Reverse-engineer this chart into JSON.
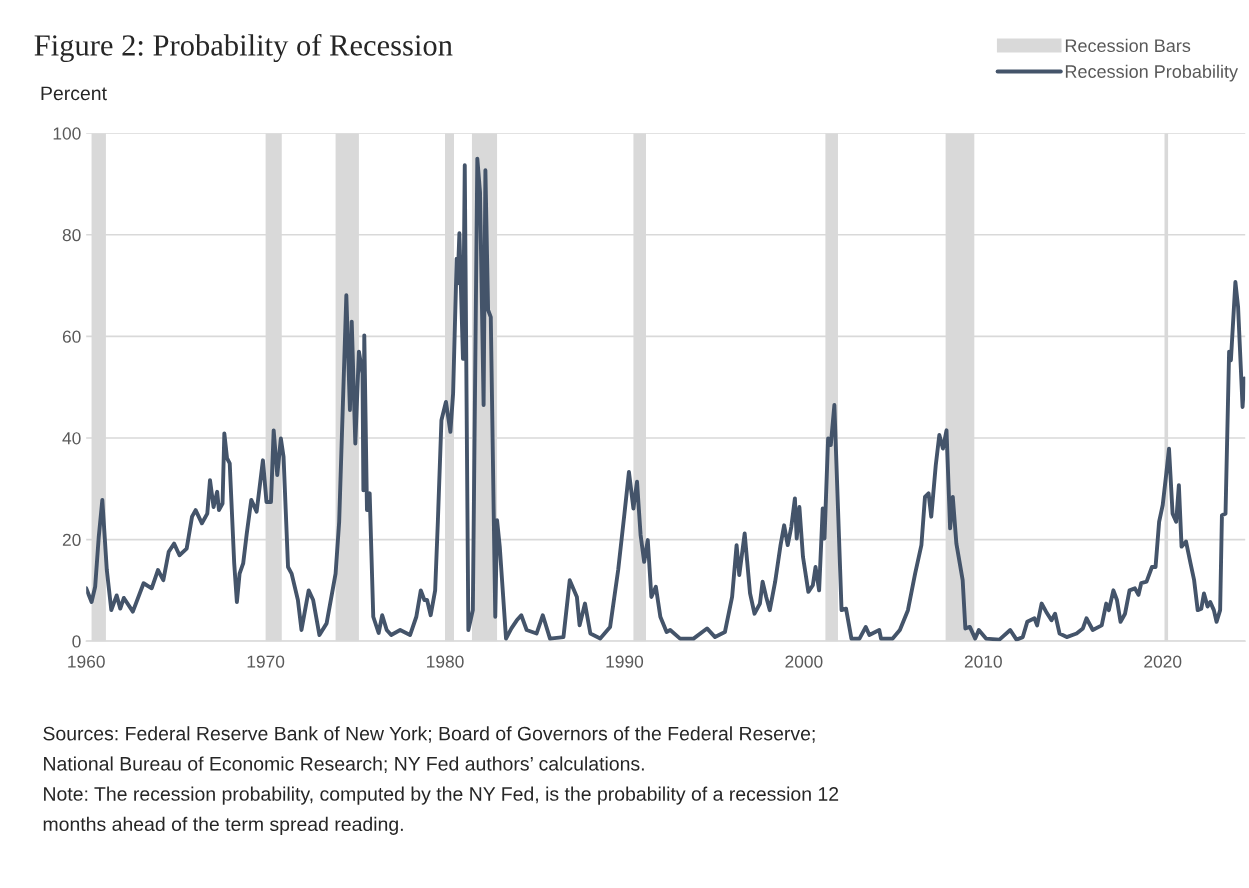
{
  "chart_data": {
    "type": "line",
    "title": "Figure 2: Probability of Recession",
    "ylabel": "Percent",
    "xlim": [
      1960,
      2024.6
    ],
    "xticks": [
      1960,
      1970,
      1980,
      1990,
      2000,
      2010,
      2020
    ],
    "ylim": [
      0,
      100
    ],
    "yticks": [
      0,
      20,
      40,
      60,
      80,
      100
    ],
    "grid": "y",
    "legend": "top right",
    "series": [
      {
        "name": "Recession Probability",
        "color": "#44546a",
        "x": [
          1960.0,
          1960.3,
          1960.5,
          1960.7,
          1960.9,
          1961.15,
          1961.4,
          1961.7,
          1961.9,
          1962.1,
          1962.6,
          1963.2,
          1963.65,
          1964.0,
          1964.3,
          1964.6,
          1964.9,
          1965.2,
          1965.6,
          1965.9,
          1966.1,
          1966.45,
          1966.75,
          1966.9,
          1967.1,
          1967.3,
          1967.4,
          1967.6,
          1967.7,
          1967.85,
          1968.0,
          1968.25,
          1968.4,
          1968.55,
          1968.75,
          1968.95,
          1969.2,
          1969.5,
          1969.85,
          1970.05,
          1970.3,
          1970.45,
          1970.65,
          1970.85,
          1971.0,
          1971.25,
          1971.45,
          1971.8,
          1972.0,
          1972.4,
          1972.65,
          1973.0,
          1973.4,
          1973.9,
          1974.1,
          1974.5,
          1974.7,
          1974.8,
          1975.0,
          1975.2,
          1975.4,
          1975.45,
          1975.5,
          1975.65,
          1975.8,
          1976.0,
          1976.3,
          1976.5,
          1976.75,
          1977.0,
          1977.5,
          1978.05,
          1978.4,
          1978.65,
          1978.85,
          1979.0,
          1979.2,
          1979.45,
          1979.6,
          1979.8,
          1980.05,
          1980.3,
          1980.45,
          1980.65,
          1980.7,
          1980.8,
          1981.0,
          1981.1,
          1981.3,
          1981.55,
          1981.8,
          1981.95,
          1982.15,
          1982.25,
          1982.4,
          1982.55,
          1982.8,
          1982.9,
          1983.05,
          1983.4,
          1983.7,
          1984.0,
          1984.25,
          1984.55,
          1985.1,
          1985.45,
          1985.85,
          1986.6,
          1986.95,
          1987.35,
          1987.5,
          1987.8,
          1988.1,
          1988.65,
          1989.2,
          1989.65,
          1990.0,
          1990.25,
          1990.5,
          1990.7,
          1990.9,
          1991.1,
          1991.3,
          1991.5,
          1991.75,
          1992.0,
          1992.35,
          1992.55,
          1993.1,
          1993.85,
          1994.6,
          1995.05,
          1995.6,
          1996.0,
          1996.25,
          1996.4,
          1996.7,
          1997.0,
          1997.25,
          1997.55,
          1997.7,
          1997.9,
          1998.1,
          1998.4,
          1998.7,
          1998.9,
          1999.1,
          1999.3,
          1999.5,
          1999.6,
          1999.75,
          1999.95,
          2000.25,
          2000.5,
          2000.65,
          2000.85,
          2001.05,
          2001.15,
          2001.35,
          2001.5,
          2001.7,
          2002.1,
          2002.35,
          2002.65,
          2003.1,
          2003.45,
          2003.65,
          2004.2,
          2004.3,
          2004.95,
          2005.35,
          2005.8,
          2006.2,
          2006.55,
          2006.75,
          2006.95,
          2007.1,
          2007.35,
          2007.55,
          2007.75,
          2007.95,
          2008.15,
          2008.3,
          2008.5,
          2008.85,
          2009.0,
          2009.25,
          2009.55,
          2009.75,
          2010.15,
          2010.9,
          2011.5,
          2011.85,
          2012.2,
          2012.45,
          2012.85,
          2013.0,
          2013.25,
          2013.5,
          2013.8,
          2014.0,
          2014.25,
          2014.65,
          2015.2,
          2015.55,
          2015.75,
          2016.1,
          2016.6,
          2016.85,
          2017.0,
          2017.25,
          2017.45,
          2017.65,
          2017.9,
          2018.15,
          2018.45,
          2018.65,
          2018.8,
          2019.1,
          2019.4,
          2019.6,
          2019.8,
          2020.0,
          2020.2,
          2020.35,
          2020.55,
          2020.75,
          2020.9,
          2021.05,
          2021.3,
          2021.55,
          2021.75,
          2021.95,
          2022.15,
          2022.3,
          2022.5,
          2022.65,
          2022.85,
          2023.0,
          2023.2,
          2023.3,
          2023.5,
          2023.7,
          2023.8,
          2024.05,
          2024.2,
          2024.45,
          2024.55
        ],
        "values": [
          10.4,
          7.7,
          10.7,
          20.5,
          27.8,
          14,
          6.1,
          9,
          6.4,
          8.5,
          5.8,
          11.4,
          10.4,
          14,
          12,
          17.6,
          19.2,
          16.9,
          18.2,
          24.5,
          25.8,
          23.2,
          25.1,
          31.7,
          26.4,
          29.4,
          25.8,
          27.1,
          40.9,
          36,
          35,
          15.3,
          7.7,
          13.3,
          15.3,
          21.2,
          27.8,
          25.5,
          35.6,
          27.4,
          27.4,
          41.5,
          32.7,
          39.9,
          36.3,
          14.6,
          13.3,
          8.1,
          2.2,
          10,
          8.1,
          1.2,
          3.5,
          13.3,
          23.5,
          68.1,
          45.5,
          62.9,
          38.9,
          57,
          52.7,
          29.7,
          60.2,
          25.8,
          29.1,
          4.8,
          1.6,
          5.1,
          2.2,
          1.2,
          2.2,
          1.2,
          4.8,
          10,
          8.1,
          8.1,
          5.1,
          10,
          23.5,
          43.5,
          47.1,
          41.2,
          48.8,
          75.3,
          70.4,
          80.3,
          55.6,
          93.7,
          2.2,
          6.1,
          95,
          88.4,
          46.5,
          92.7,
          65.2,
          63.8,
          4.8,
          23.8,
          18.6,
          0.5,
          2.5,
          4.1,
          5.1,
          2.2,
          1.5,
          5.1,
          0.5,
          0.8,
          12,
          8.7,
          3.1,
          7.4,
          1.5,
          0.5,
          2.8,
          14,
          25.1,
          33.3,
          26.1,
          31.4,
          20.9,
          15.6,
          19.9,
          8.7,
          10.7,
          4.8,
          1.8,
          2.2,
          0.5,
          0.5,
          2.5,
          0.8,
          1.8,
          8.7,
          18.9,
          13,
          21.2,
          9.4,
          5.4,
          7.4,
          11.7,
          8.7,
          6.1,
          11.7,
          18.9,
          22.8,
          18.9,
          22.5,
          28.1,
          20.2,
          26.4,
          16.6,
          9.7,
          11,
          14.6,
          10,
          26.1,
          20.2,
          39.9,
          38.6,
          46.5,
          6.1,
          6.4,
          0.5,
          0.5,
          2.8,
          1.2,
          2.2,
          0.5,
          0.5,
          2.2,
          6.1,
          13.3,
          18.9,
          28.4,
          29.1,
          24.5,
          34.6,
          40.6,
          37.9,
          41.5,
          22.2,
          28.4,
          19.2,
          12,
          2.5,
          2.8,
          0.5,
          2.2,
          0.5,
          0.3,
          2.2,
          0.3,
          0.8,
          3.8,
          4.5,
          3.1,
          7.4,
          5.8,
          4.1,
          5.4,
          1.5,
          0.8,
          1.5,
          2.5,
          4.5,
          2.2,
          3.1,
          7.4,
          6.1,
          10,
          8.1,
          3.8,
          5.4,
          10,
          10.4,
          9.1,
          11.4,
          11.7,
          14.6,
          14.6,
          23.5,
          26.8,
          33,
          37.9,
          25.1,
          23.5,
          30.7,
          18.6,
          19.6,
          15.3,
          12,
          6.1,
          6.4,
          9.4,
          6.8,
          7.7,
          6.1,
          3.8,
          6.1,
          24.8,
          25.1,
          57,
          55.3,
          70.7,
          65.8,
          46.1,
          51.7
        ]
      }
    ],
    "bands": [
      {
        "axis": "x",
        "from": 1960.3,
        "to": 1961.1,
        "label": "Recession Bars",
        "color": "#d9d9d9"
      },
      {
        "axis": "x",
        "from": 1970.0,
        "to": 1970.9,
        "color": "#d9d9d9"
      },
      {
        "axis": "x",
        "from": 1973.9,
        "to": 1975.2,
        "color": "#d9d9d9"
      },
      {
        "axis": "x",
        "from": 1980.0,
        "to": 1980.5,
        "color": "#d9d9d9"
      },
      {
        "axis": "x",
        "from": 1981.5,
        "to": 1982.9,
        "color": "#d9d9d9"
      },
      {
        "axis": "x",
        "from": 1990.5,
        "to": 1991.2,
        "color": "#d9d9d9"
      },
      {
        "axis": "x",
        "from": 2001.2,
        "to": 2001.9,
        "color": "#d9d9d9"
      },
      {
        "axis": "x",
        "from": 2007.9,
        "to": 2009.5,
        "color": "#d9d9d9"
      },
      {
        "axis": "x",
        "from": 2020.1,
        "to": 2020.3,
        "color": "#d9d9d9"
      }
    ],
    "annotations": [
      "Sources: Federal Reserve Bank of New York; Board of Governors of the Federal Reserve;",
      "National Bureau of Economic Research; NY Fed authors’ calculations.",
      "Note: The recession probability, computed by the NY Fed, is the probability of a recession 12",
      "months ahead of the term spread reading."
    ]
  }
}
